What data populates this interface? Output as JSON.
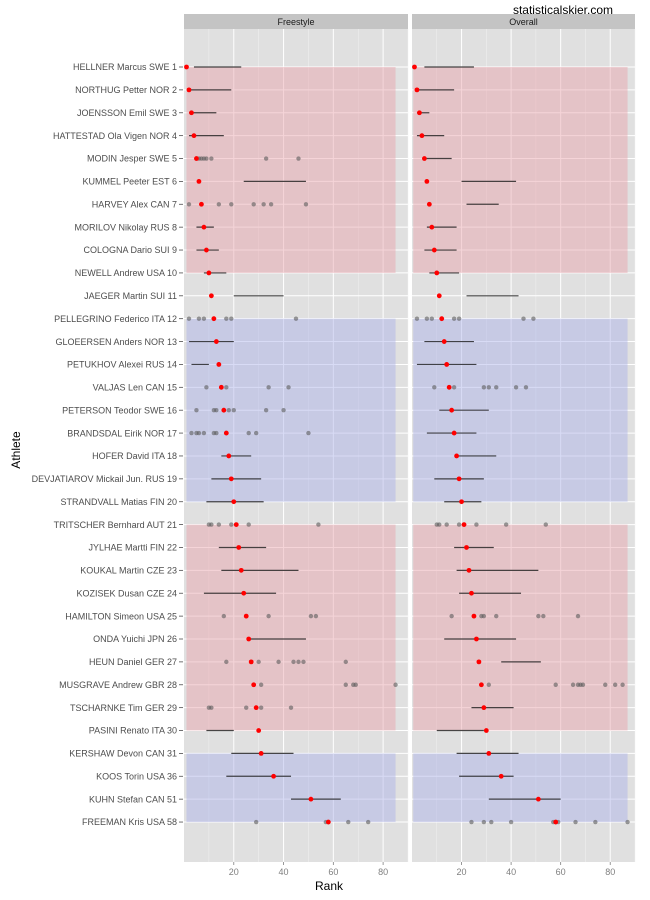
{
  "watermark": "statisticalskier.com",
  "chart_data": {
    "type": "scatter",
    "subtype": "faceted dot-and-interval plot",
    "xlabel": "Rank",
    "ylabel": "Athlete",
    "xlim": [
      0,
      90
    ],
    "xticks": [
      20,
      40,
      60,
      80
    ],
    "grid": true,
    "legend": "none",
    "colors": {
      "panel_bg": "#e0e0e0",
      "grid": "#ffffff",
      "strip_bg": "#c4c4c4",
      "band_red": "#e8a0a8",
      "band_blue": "#a8b0e8",
      "current_rank_point": "#ff0000",
      "past_race_point": "#5a5a5a",
      "interval_line": "#1a1a1a"
    },
    "band_groups": [
      {
        "color": "red",
        "from": "HELLNER Marcus SWE 1",
        "to": "NEWELL Andrew USA 10"
      },
      {
        "color": "blue",
        "from": "PELLEGRINO Federico ITA 12",
        "to": "STRANDVALL Matias FIN 20"
      },
      {
        "color": "red",
        "from": "TRITSCHER Bernhard AUT 21",
        "to": "PASINI Renato ITA 30"
      },
      {
        "color": "blue",
        "from": "KERSHAW Devon CAN 31",
        "to": "FREEMAN Kris USA 58"
      }
    ],
    "facets": [
      {
        "label": "Freestyle",
        "athletes": [
          {
            "name": "HELLNER Marcus SWE 1",
            "rank": 1,
            "interval": [
              4,
              23
            ],
            "points": []
          },
          {
            "name": "NORTHUG Petter NOR 2",
            "rank": 2,
            "interval": [
              2,
              19
            ],
            "points": []
          },
          {
            "name": "JOENSSON Emil SWE 3",
            "rank": 3,
            "interval": [
              2,
              13
            ],
            "points": []
          },
          {
            "name": "HATTESTAD Ola Vigen NOR 4",
            "rank": 4,
            "interval": [
              2,
              16
            ],
            "points": []
          },
          {
            "name": "MODIN Jesper SWE 5",
            "rank": 5,
            "interval": null,
            "points": [
              5,
              6,
              7,
              8,
              9,
              11,
              33,
              46
            ]
          },
          {
            "name": "KUMMEL Peeter EST 6",
            "rank": 6,
            "interval": [
              24,
              49
            ],
            "points": []
          },
          {
            "name": "HARVEY Alex CAN 7",
            "rank": 7,
            "interval": null,
            "points": [
              2,
              14,
              19,
              28,
              32,
              35,
              49
            ]
          },
          {
            "name": "MORILOV Nikolay RUS 8",
            "rank": 8,
            "interval": [
              5,
              12
            ],
            "points": []
          },
          {
            "name": "COLOGNA Dario SUI 9",
            "rank": 9,
            "interval": [
              5,
              14
            ],
            "points": []
          },
          {
            "name": "NEWELL Andrew USA 10",
            "rank": 10,
            "interval": [
              8,
              17
            ],
            "points": []
          },
          {
            "name": "JAEGER Martin SUI 11",
            "rank": 11,
            "interval": [
              20,
              40
            ],
            "points": []
          },
          {
            "name": "PELLEGRINO Federico ITA 12",
            "rank": 12,
            "interval": null,
            "points": [
              2,
              6,
              8,
              17,
              19,
              45
            ]
          },
          {
            "name": "GLOEERSEN Anders NOR 13",
            "rank": 13,
            "interval": [
              2,
              20
            ],
            "points": []
          },
          {
            "name": "PETUKHOV Alexei RUS 14",
            "rank": 14,
            "interval": [
              3,
              10
            ],
            "points": []
          },
          {
            "name": "VALJAS Len CAN 15",
            "rank": 15,
            "interval": null,
            "points": [
              9,
              17,
              34,
              42
            ]
          },
          {
            "name": "PETERSON Teodor SWE 16",
            "rank": 16,
            "interval": null,
            "points": [
              5,
              12,
              13,
              18,
              20,
              33,
              40
            ]
          },
          {
            "name": "BRANDSDAL Eirik NOR 17",
            "rank": 17,
            "interval": null,
            "points": [
              3,
              5,
              6,
              8,
              12,
              13,
              26,
              29,
              50
            ]
          },
          {
            "name": "HOFER David ITA 18",
            "rank": 18,
            "interval": [
              15,
              27
            ],
            "points": []
          },
          {
            "name": "DEVJATIAROV Mickail Jun. RUS 19",
            "rank": 19,
            "interval": [
              11,
              31
            ],
            "points": []
          },
          {
            "name": "STRANDVALL Matias FIN 20",
            "rank": 20,
            "interval": [
              9,
              32
            ],
            "points": []
          },
          {
            "name": "TRITSCHER Bernhard AUT 21",
            "rank": 21,
            "interval": null,
            "points": [
              10,
              11,
              14,
              19,
              26,
              54
            ]
          },
          {
            "name": "JYLHAE Martti FIN 22",
            "rank": 22,
            "interval": [
              14,
              33
            ],
            "points": []
          },
          {
            "name": "KOUKAL Martin CZE 23",
            "rank": 23,
            "interval": [
              15,
              46
            ],
            "points": []
          },
          {
            "name": "KOZISEK Dusan CZE 24",
            "rank": 24,
            "interval": [
              8,
              37
            ],
            "points": []
          },
          {
            "name": "HAMILTON Simeon USA 25",
            "rank": 25,
            "interval": null,
            "points": [
              16,
              34,
              51,
              53
            ]
          },
          {
            "name": "ONDA Yuichi JPN 26",
            "rank": 26,
            "interval": [
              26,
              49
            ],
            "points": []
          },
          {
            "name": "HEUN Daniel GER 27",
            "rank": 27,
            "interval": null,
            "points": [
              17,
              30,
              38,
              44,
              46,
              48,
              65
            ]
          },
          {
            "name": "MUSGRAVE Andrew GBR 28",
            "rank": 28,
            "interval": null,
            "points": [
              31,
              65,
              68,
              69,
              85
            ]
          },
          {
            "name": "TSCHARNKE Tim GER 29",
            "rank": 29,
            "interval": null,
            "points": [
              10,
              11,
              25,
              31,
              43
            ]
          },
          {
            "name": "PASINI Renato ITA 30",
            "rank": 30,
            "interval": [
              9,
              20
            ],
            "points": []
          },
          {
            "name": "KERSHAW Devon CAN 31",
            "rank": 31,
            "interval": [
              19,
              44
            ],
            "points": []
          },
          {
            "name": "KOOS Torin USA 36",
            "rank": 36,
            "interval": [
              17,
              43
            ],
            "points": []
          },
          {
            "name": "KUHN Stefan CAN 51",
            "rank": 51,
            "interval": [
              43,
              63
            ],
            "points": []
          },
          {
            "name": "FREEMAN Kris USA 58",
            "rank": 58,
            "interval": null,
            "points": [
              29,
              57,
              66,
              74
            ]
          }
        ]
      },
      {
        "label": "Overall",
        "athletes": [
          {
            "name": "HELLNER Marcus SWE 1",
            "rank": 1,
            "interval": [
              5,
              25
            ],
            "points": []
          },
          {
            "name": "NORTHUG Petter NOR 2",
            "rank": 2,
            "interval": [
              2,
              17
            ],
            "points": []
          },
          {
            "name": "JOENSSON Emil SWE 3",
            "rank": 3,
            "interval": [
              2,
              7
            ],
            "points": []
          },
          {
            "name": "HATTESTAD Ola Vigen NOR 4",
            "rank": 4,
            "interval": [
              2,
              13
            ],
            "points": []
          },
          {
            "name": "MODIN Jesper SWE 5",
            "rank": 5,
            "interval": [
              5,
              16
            ],
            "points": []
          },
          {
            "name": "KUMMEL Peeter EST 6",
            "rank": 6,
            "interval": [
              20,
              42
            ],
            "points": []
          },
          {
            "name": "HARVEY Alex CAN 7",
            "rank": 7,
            "interval": [
              22,
              35
            ],
            "points": []
          },
          {
            "name": "MORILOV Nikolay RUS 8",
            "rank": 8,
            "interval": [
              6,
              18
            ],
            "points": []
          },
          {
            "name": "COLOGNA Dario SUI 9",
            "rank": 9,
            "interval": [
              5,
              18
            ],
            "points": []
          },
          {
            "name": "NEWELL Andrew USA 10",
            "rank": 10,
            "interval": [
              7,
              19
            ],
            "points": []
          },
          {
            "name": "JAEGER Martin SUI 11",
            "rank": 11,
            "interval": [
              22,
              43
            ],
            "points": []
          },
          {
            "name": "PELLEGRINO Federico ITA 12",
            "rank": 12,
            "interval": null,
            "points": [
              2,
              6,
              8,
              17,
              19,
              45,
              49
            ]
          },
          {
            "name": "GLOEERSEN Anders NOR 13",
            "rank": 13,
            "interval": [
              5,
              25
            ],
            "points": []
          },
          {
            "name": "PETUKHOV Alexei RUS 14",
            "rank": 14,
            "interval": [
              2,
              26
            ],
            "points": []
          },
          {
            "name": "VALJAS Len CAN 15",
            "rank": 15,
            "interval": null,
            "points": [
              9,
              17,
              29,
              31,
              34,
              42,
              46
            ]
          },
          {
            "name": "PETERSON Teodor SWE 16",
            "rank": 16,
            "interval": [
              11,
              31
            ],
            "points": []
          },
          {
            "name": "BRANDSDAL Eirik NOR 17",
            "rank": 17,
            "interval": [
              6,
              26
            ],
            "points": []
          },
          {
            "name": "HOFER David ITA 18",
            "rank": 18,
            "interval": [
              18,
              34
            ],
            "points": []
          },
          {
            "name": "DEVJATIAROV Mickail Jun. RUS 19",
            "rank": 19,
            "interval": [
              9,
              29
            ],
            "points": []
          },
          {
            "name": "STRANDVALL Matias FIN 20",
            "rank": 20,
            "interval": [
              13,
              28
            ],
            "points": []
          },
          {
            "name": "TRITSCHER Bernhard AUT 21",
            "rank": 21,
            "interval": null,
            "points": [
              10,
              11,
              14,
              19,
              26,
              38,
              54
            ]
          },
          {
            "name": "JYLHAE Martti FIN 22",
            "rank": 22,
            "interval": [
              17,
              33
            ],
            "points": []
          },
          {
            "name": "KOUKAL Martin CZE 23",
            "rank": 23,
            "interval": [
              18,
              51
            ],
            "points": []
          },
          {
            "name": "KOZISEK Dusan CZE 24",
            "rank": 24,
            "interval": [
              19,
              44
            ],
            "points": []
          },
          {
            "name": "HAMILTON Simeon USA 25",
            "rank": 25,
            "interval": null,
            "points": [
              16,
              28,
              29,
              34,
              51,
              53,
              67
            ]
          },
          {
            "name": "ONDA Yuichi JPN 26",
            "rank": 26,
            "interval": [
              13,
              42
            ],
            "points": []
          },
          {
            "name": "HEUN Daniel GER 27",
            "rank": 27,
            "interval": [
              36,
              52
            ],
            "points": []
          },
          {
            "name": "MUSGRAVE Andrew GBR 28",
            "rank": 28,
            "interval": null,
            "points": [
              31,
              58,
              65,
              67,
              68,
              69,
              78,
              82,
              85
            ]
          },
          {
            "name": "TSCHARNKE Tim GER 29",
            "rank": 29,
            "interval": [
              24,
              41
            ],
            "points": []
          },
          {
            "name": "PASINI Renato ITA 30",
            "rank": 30,
            "interval": [
              10,
              29
            ],
            "points": []
          },
          {
            "name": "KERSHAW Devon CAN 31",
            "rank": 31,
            "interval": [
              18,
              43
            ],
            "points": []
          },
          {
            "name": "KOOS Torin USA 36",
            "rank": 36,
            "interval": [
              19,
              41
            ],
            "points": []
          },
          {
            "name": "KUHN Stefan CAN 51",
            "rank": 51,
            "interval": [
              31,
              60
            ],
            "points": []
          },
          {
            "name": "FREEMAN Kris USA 58",
            "rank": 58,
            "interval": null,
            "points": [
              24,
              29,
              32,
              40,
              57,
              59,
              66,
              74,
              87
            ]
          }
        ]
      }
    ]
  }
}
